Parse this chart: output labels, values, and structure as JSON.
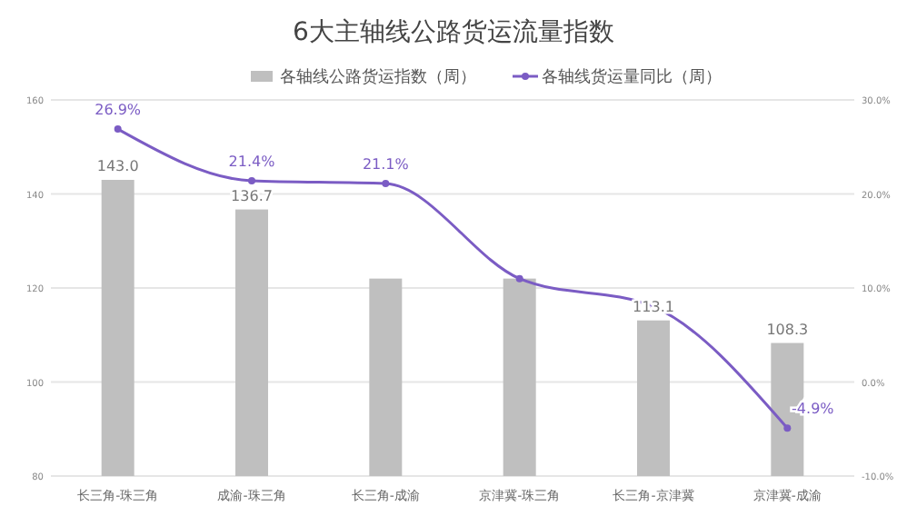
{
  "chart_data": {
    "type": "bar",
    "title": "6大主轴线公路货运流量指数",
    "categories": [
      "长三角-珠三角",
      "成渝-珠三角",
      "长三角-成渝",
      "京津冀-珠三角",
      "长三角-京津冀",
      "京津冀-成渝"
    ],
    "series": [
      {
        "name": "各轴线公路货运指数（周）",
        "color": "#bfbfbf",
        "values": [
          143.0,
          136.7,
          122,
          122,
          113.1,
          108.3
        ],
        "value_labels": [
          "143.0",
          "136.7",
          null,
          null,
          "113.1",
          "108.3"
        ]
      },
      {
        "name": "各轴线货运量同比（周）",
        "type": "line",
        "axis": "y2",
        "color": "#7b5cc4",
        "values": [
          26.9,
          21.4,
          21.1,
          11.0,
          8.0,
          -4.9
        ],
        "value_labels": [
          "26.9%",
          "21.4%",
          "21.1%",
          null,
          null,
          "-4.9%"
        ]
      }
    ],
    "ylim": [
      80,
      160
    ],
    "yticks": [
      80,
      100,
      120,
      140,
      160
    ],
    "y2lim": [
      -10,
      30
    ],
    "y2ticks": [
      {
        "value": -10,
        "label": "-10.0%"
      },
      {
        "value": 0,
        "label": "0.0%"
      },
      {
        "value": 10,
        "label": "10.0%"
      },
      {
        "value": 20,
        "label": "20.0%"
      },
      {
        "value": 30,
        "label": "30.0%"
      }
    ],
    "grid": "y",
    "legend": "top",
    "marker": "circle"
  }
}
